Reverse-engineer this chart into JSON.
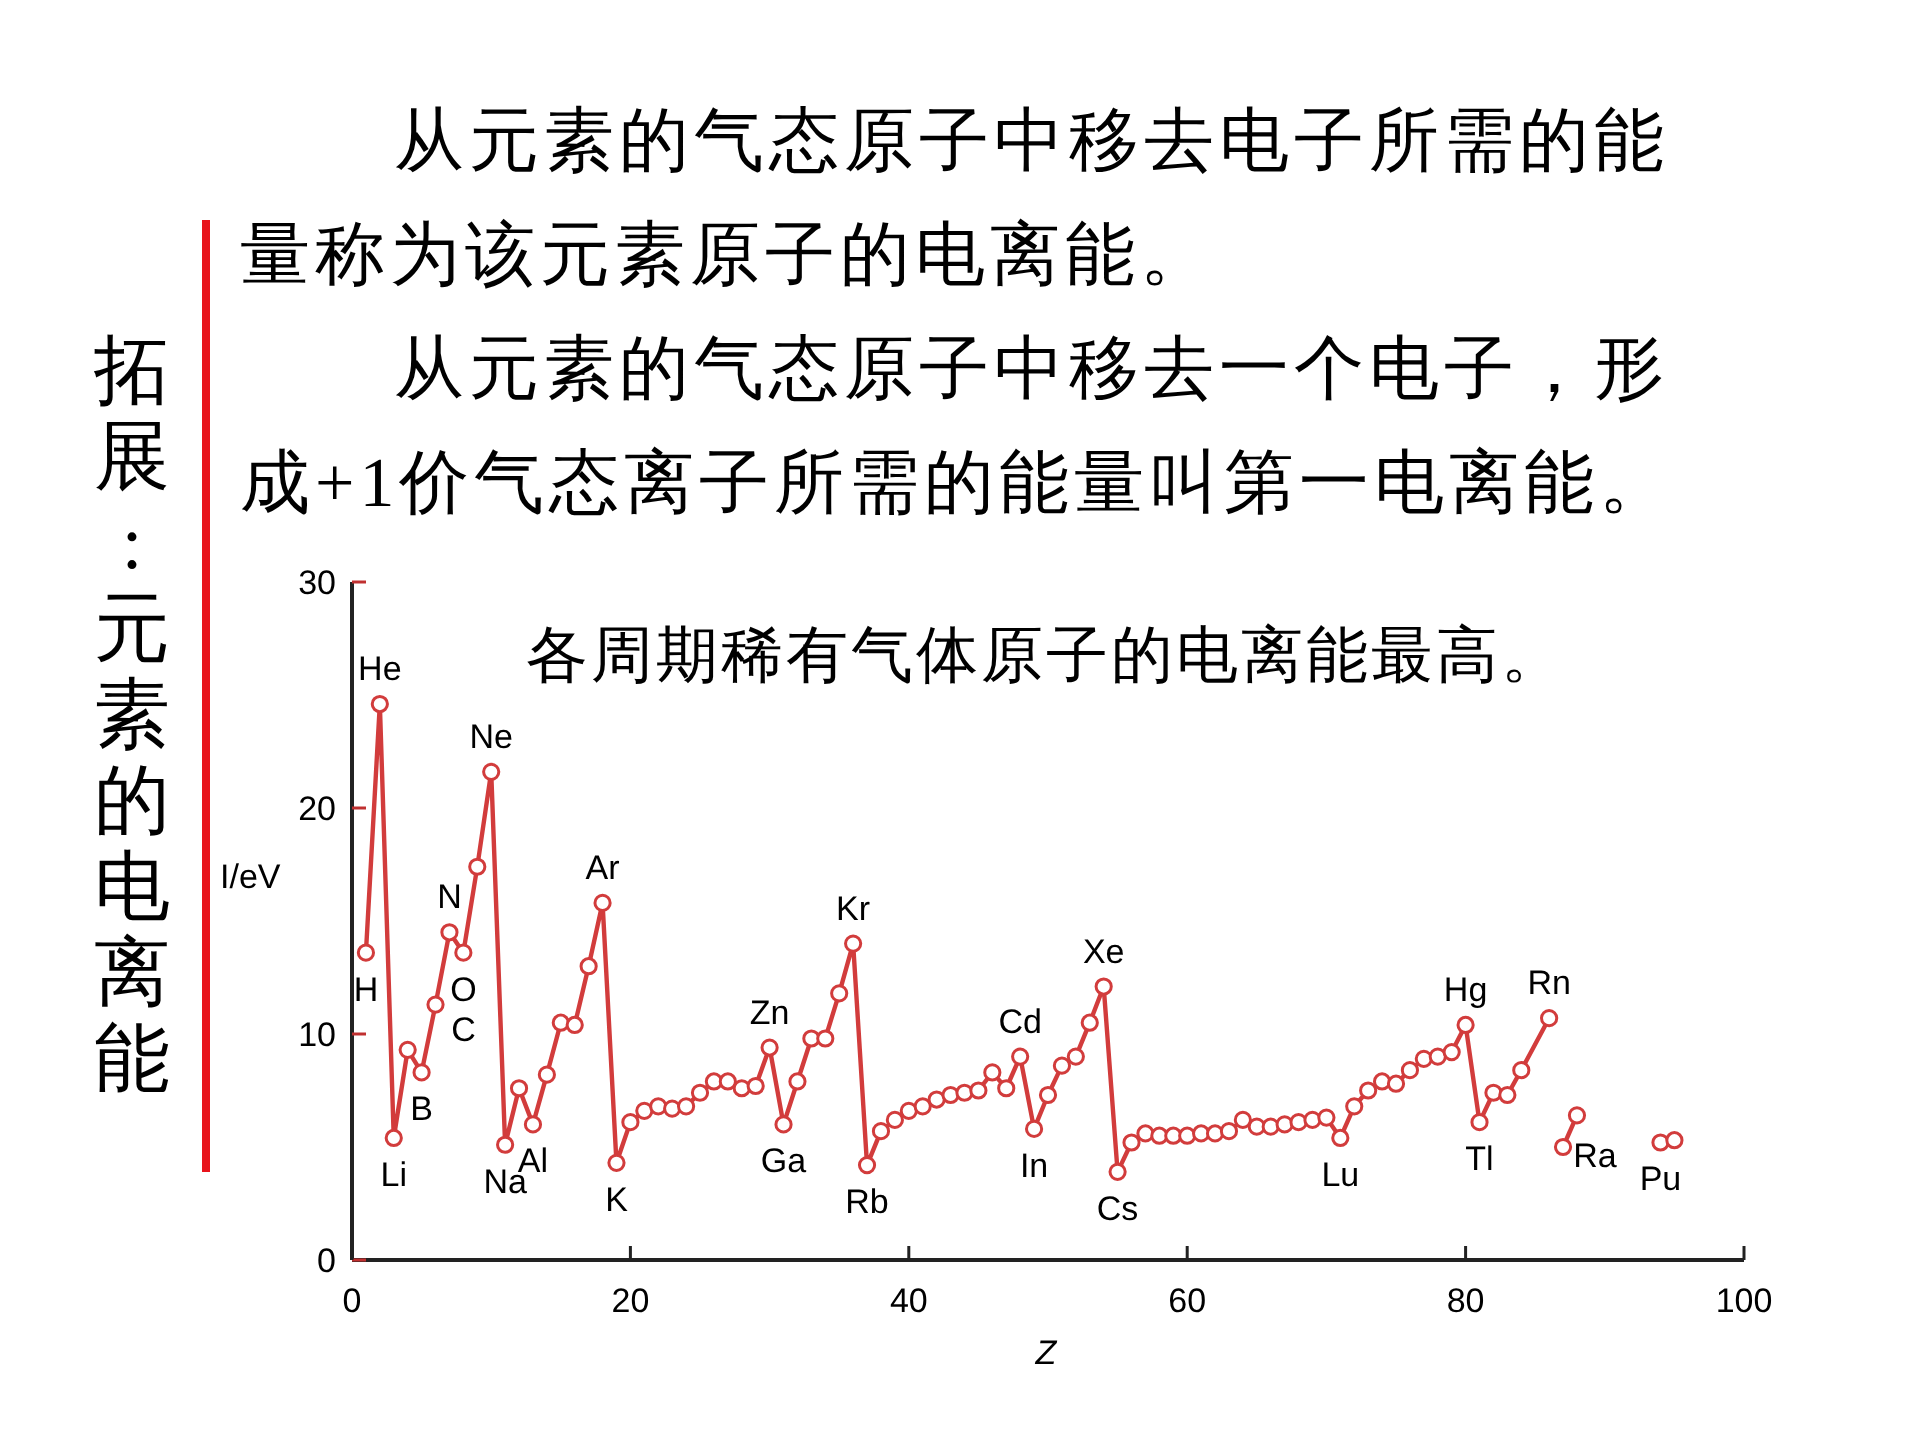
{
  "chart_data": {
    "type": "line",
    "title": "拓展:元素的电离能",
    "annotations": [
      "从元素的气态原子中移去电子所需的能量称为该元素原子的电离能。",
      "从元素的气态原子中移去一个电子，形成+1价气态离子所需的能量叫第一电离能。",
      "各周期稀有气体原子的电离能最高。",
      {
        "text": "H",
        "x": 1,
        "y": 13.6
      },
      {
        "text": "He",
        "x": 2,
        "y": 24.6
      },
      {
        "text": "Li",
        "x": 3,
        "y": 5.4
      },
      {
        "text": "B",
        "x": 5,
        "y": 8.3
      },
      {
        "text": "C",
        "x": 6,
        "y": 11.3
      },
      {
        "text": "N",
        "x": 7,
        "y": 14.5
      },
      {
        "text": "O",
        "x": 8,
        "y": 13.6
      },
      {
        "text": "Ne",
        "x": 10,
        "y": 21.6
      },
      {
        "text": "Na",
        "x": 11,
        "y": 5.1
      },
      {
        "text": "Al",
        "x": 13,
        "y": 6.0
      },
      {
        "text": "Ar",
        "x": 18,
        "y": 15.8
      },
      {
        "text": "K",
        "x": 19,
        "y": 4.3
      },
      {
        "text": "Zn",
        "x": 30,
        "y": 9.4
      },
      {
        "text": "Ga",
        "x": 31,
        "y": 6.0
      },
      {
        "text": "Kr",
        "x": 36,
        "y": 14.0
      },
      {
        "text": "Rb",
        "x": 37,
        "y": 4.2
      },
      {
        "text": "Cd",
        "x": 48,
        "y": 9.0
      },
      {
        "text": "In",
        "x": 49,
        "y": 5.8
      },
      {
        "text": "Xe",
        "x": 54,
        "y": 12.1
      },
      {
        "text": "Cs",
        "x": 55,
        "y": 3.9
      },
      {
        "text": "Lu",
        "x": 71,
        "y": 5.4
      },
      {
        "text": "Hg",
        "x": 80,
        "y": 10.4
      },
      {
        "text": "Tl",
        "x": 81,
        "y": 6.1
      },
      {
        "text": "Rn",
        "x": 86,
        "y": 10.7
      },
      {
        "text": "Ra",
        "x": 88,
        "y": 6.4
      },
      {
        "text": "Pu",
        "x": 94,
        "y": 5.2
      }
    ],
    "xlabel": "Z",
    "ylabel": "I/eV",
    "xlim": [
      0,
      100
    ],
    "xticks": [
      0,
      20,
      40,
      60,
      80,
      100
    ],
    "ylim": [
      0,
      30
    ],
    "yticks": [
      0,
      10,
      20,
      30
    ],
    "grid": false,
    "marker": "circle",
    "line_style": "solid",
    "series": [
      {
        "color": "#d23c3c",
        "x": [
          1,
          2,
          3,
          4,
          5,
          6,
          7,
          8,
          9,
          10,
          11,
          12,
          13,
          14,
          15,
          16,
          17,
          18,
          19,
          20,
          21,
          22,
          23,
          24,
          25,
          26,
          27,
          28,
          29,
          30,
          31,
          32,
          33,
          34,
          35,
          36,
          37,
          38,
          39,
          40,
          41,
          42,
          43,
          44,
          45,
          46,
          47,
          48,
          49,
          50,
          51,
          52,
          53,
          54,
          55,
          56,
          57,
          58,
          59,
          60,
          61,
          62,
          63,
          64,
          65,
          66,
          67,
          68,
          69,
          70,
          71,
          72,
          73,
          74,
          75,
          76,
          77,
          78,
          79,
          80,
          81,
          82,
          83,
          84,
          86
        ],
        "values": [
          13.6,
          24.6,
          5.4,
          9.3,
          8.3,
          11.3,
          14.5,
          13.6,
          17.4,
          21.6,
          5.1,
          7.6,
          6.0,
          8.2,
          10.5,
          10.4,
          13.0,
          15.8,
          4.3,
          6.1,
          6.6,
          6.8,
          6.7,
          6.8,
          7.4,
          7.9,
          7.9,
          7.6,
          7.7,
          9.4,
          6.0,
          7.9,
          9.8,
          9.8,
          11.8,
          14.0,
          4.2,
          5.7,
          6.2,
          6.6,
          6.8,
          7.1,
          7.3,
          7.4,
          7.5,
          8.3,
          7.6,
          9.0,
          5.8,
          7.3,
          8.6,
          9.0,
          10.5,
          12.1,
          3.9,
          5.2,
          5.6,
          5.5,
          5.5,
          5.5,
          5.6,
          5.6,
          5.7,
          6.2,
          5.9,
          5.9,
          6.0,
          6.1,
          6.2,
          6.3,
          5.4,
          6.8,
          7.5,
          7.9,
          7.8,
          8.4,
          8.9,
          9.0,
          9.2,
          10.4,
          6.1,
          7.4,
          7.3,
          8.4,
          10.7
        ]
      },
      {
        "color": "#d23c3c",
        "x": [
          87,
          88
        ],
        "values": [
          5.0,
          6.4
        ]
      },
      {
        "type": "scatter",
        "color": "#d23c3c",
        "x": [
          94,
          95
        ],
        "values": [
          5.2,
          5.3
        ]
      }
    ]
  }
}
